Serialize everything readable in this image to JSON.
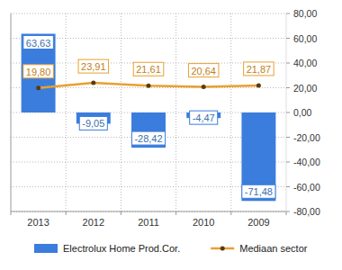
{
  "chart_data": {
    "type": "bar",
    "categories": [
      "2013",
      "2012",
      "2011",
      "2010",
      "2009"
    ],
    "series": [
      {
        "name": "Electrolux Home Prod.Cor.",
        "type": "bar",
        "color": "#3b7ddd",
        "values": [
          63.63,
          -9.05,
          -28.42,
          -4.47,
          -71.48
        ],
        "value_labels": [
          "63,63",
          "-9,05",
          "-28,42",
          "-4,47",
          "-71,48"
        ]
      },
      {
        "name": "Mediaan sector",
        "type": "line",
        "color": "#e8a030",
        "marker": "circle",
        "line_style": "solid",
        "values": [
          19.8,
          23.91,
          21.61,
          20.64,
          21.87
        ],
        "value_labels": [
          "19,80",
          "23,91",
          "21,61",
          "20,64",
          "21,87"
        ]
      }
    ],
    "ylim": [
      -80,
      80
    ],
    "yticks": [
      {
        "value": 80,
        "label": "80,00"
      },
      {
        "value": 60,
        "label": "60,00"
      },
      {
        "value": 40,
        "label": "40,00"
      },
      {
        "value": 20,
        "label": "20,00"
      },
      {
        "value": 0,
        "label": "0,00"
      },
      {
        "value": -20,
        "label": "-20,00"
      },
      {
        "value": -40,
        "label": "-40,00"
      },
      {
        "value": -60,
        "label": "-60,00"
      },
      {
        "value": -80,
        "label": "-80,00"
      }
    ],
    "grid": true,
    "data_labels": true,
    "legend": "bottom"
  }
}
